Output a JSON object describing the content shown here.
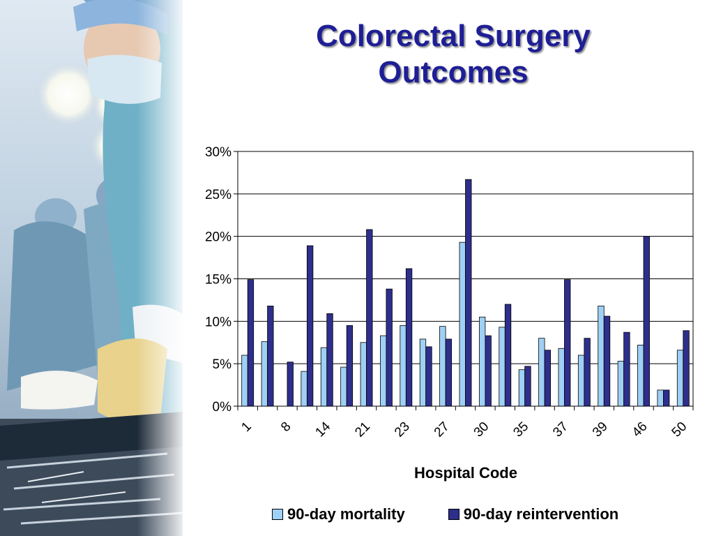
{
  "title_line1": "Colorectal Surgery",
  "title_line2": "Outcomes",
  "colors": {
    "title": "#1e1e96",
    "mortality": "#9fd0f5",
    "reintervention": "#2e2e8c"
  },
  "chart_data": {
    "type": "bar",
    "title": "Colorectal Surgery Outcomes",
    "xlabel": "Hospital Code",
    "ylabel": "",
    "ylim": [
      0,
      30
    ],
    "yticks": [
      "0%",
      "5%",
      "10%",
      "15%",
      "20%",
      "25%",
      "30%"
    ],
    "grid": true,
    "legend_position": "bottom",
    "categories": [
      "1",
      "",
      "8",
      "",
      "14",
      "",
      "21",
      "",
      "23",
      "",
      "27",
      "",
      "30",
      "",
      "35",
      "",
      "37",
      "",
      "39",
      "",
      "46",
      "",
      "50"
    ],
    "category_labels": [
      "1",
      "8",
      "14",
      "21",
      "23",
      "27",
      "30",
      "35",
      "37",
      "39",
      "46",
      "50"
    ],
    "series": [
      {
        "name": "90-day mortality",
        "values": [
          6.0,
          7.6,
          0,
          4.1,
          6.9,
          4.6,
          7.5,
          8.3,
          9.5,
          7.9,
          9.4,
          19.3,
          10.5,
          9.3,
          4.3,
          8.0,
          6.8,
          6.0,
          11.8,
          5.3,
          7.2,
          1.9,
          6.6
        ]
      },
      {
        "name": "90-day reintervention",
        "values": [
          14.9,
          11.8,
          5.2,
          18.9,
          10.9,
          9.5,
          20.8,
          13.8,
          16.2,
          7.0,
          7.9,
          26.7,
          8.3,
          12.0,
          4.7,
          6.6,
          14.9,
          8.0,
          10.6,
          8.7,
          20.0,
          1.9,
          8.9
        ]
      }
    ]
  }
}
